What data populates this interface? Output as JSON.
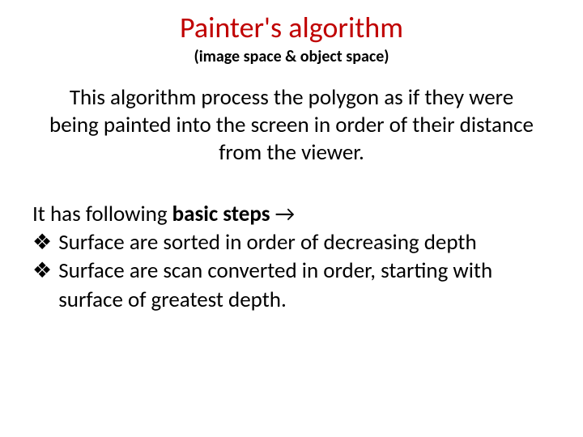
{
  "title": {
    "text": "Painter's algorithm",
    "color": "#c00000",
    "fontsize": 36
  },
  "subtitle": {
    "text": "(image space & object space)",
    "color": "#000000",
    "fontsize": 20
  },
  "intro": {
    "text": "This algorithm process the polygon as if they were being painted into the screen in order of their distance from the viewer.",
    "fontsize": 27,
    "color": "#000000"
  },
  "steps_lead": {
    "prefix": "It has following ",
    "bold": "basic steps ",
    "arrow": "→",
    "fontsize": 27,
    "color": "#000000"
  },
  "bullets": {
    "icon": "❖",
    "fontsize": 27,
    "color": "#000000",
    "items": [
      {
        "text": "Surface are sorted in order of decreasing depth"
      },
      {
        "text": "Surface are scan converted in order, starting with surface of greatest depth."
      }
    ]
  }
}
